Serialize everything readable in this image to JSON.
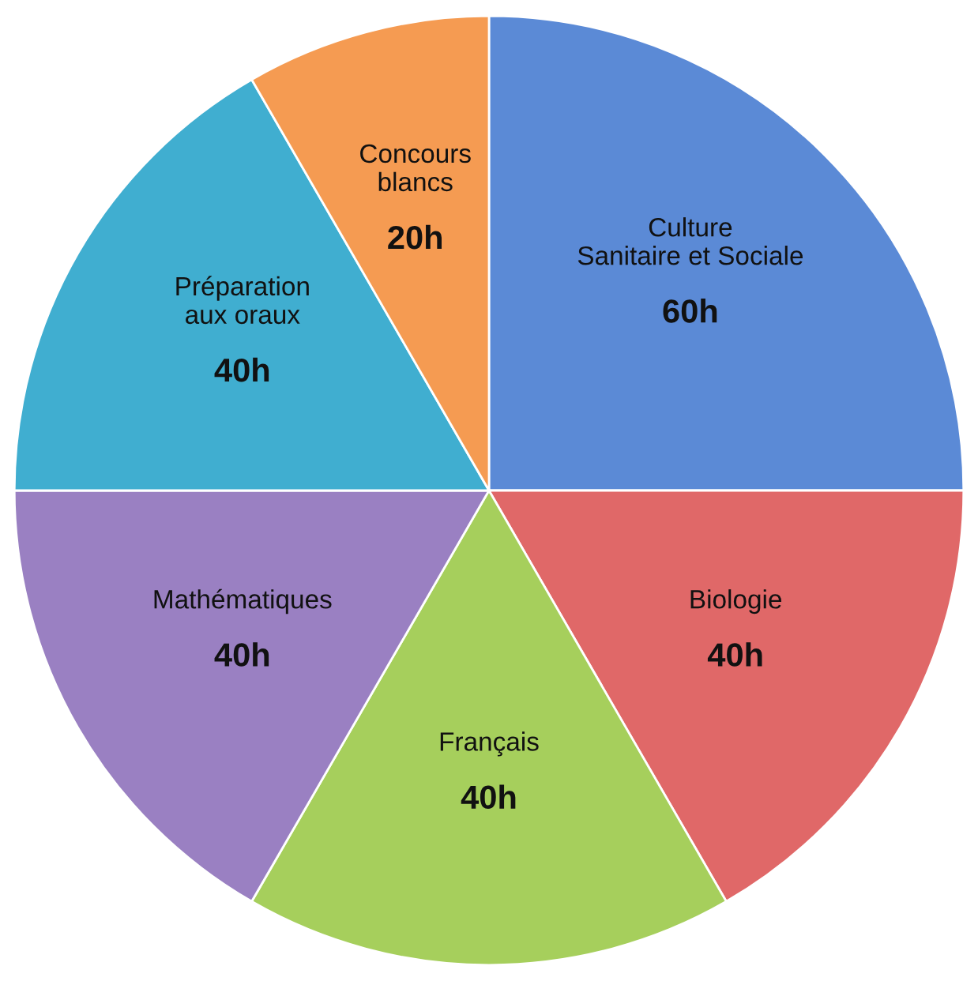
{
  "chart_data": {
    "type": "pie",
    "categories": [
      "Culture\nSanitaire et Sociale",
      "Biologie",
      "Français",
      "Mathématiques",
      "Préparation\naux oraux",
      "Concours\nblancs"
    ],
    "values": [
      60,
      40,
      40,
      40,
      40,
      20
    ],
    "value_labels": [
      "60h",
      "40h",
      "40h",
      "40h",
      "40h",
      "20h"
    ],
    "colors": [
      "#5b8ad6",
      "#e06868",
      "#a6cf5c",
      "#9a80c2",
      "#40aed0",
      "#f59b52"
    ],
    "legend": false
  }
}
